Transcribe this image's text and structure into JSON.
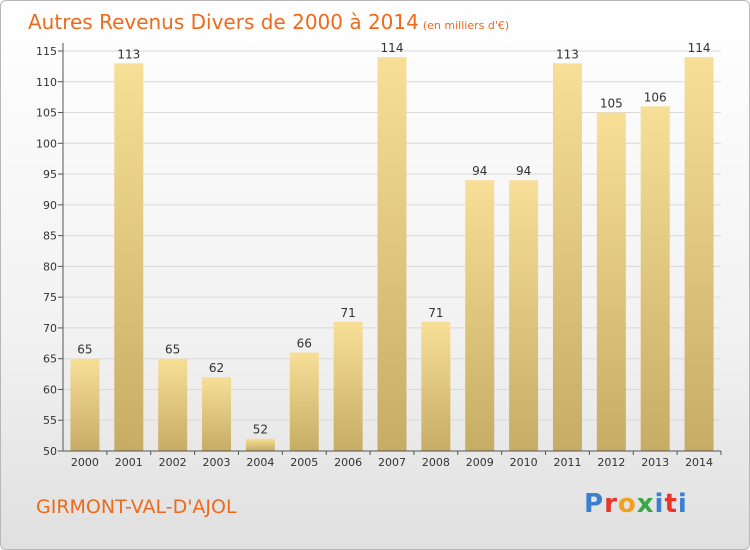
{
  "title": "Autres Revenus Divers de 2000 à 2014",
  "title_unit": "(en milliers d'€)",
  "location": "GIRMONT-VAL-D'AJOL",
  "logo": {
    "text": "Proxiti",
    "letters": [
      "P",
      "r",
      "o",
      "x",
      "i",
      "t",
      "i"
    ]
  },
  "colors": {
    "accent": "#ee6a1b",
    "bar_light": "#f8df98",
    "bar_dark": "#c6ac64"
  },
  "chart_data": {
    "type": "bar",
    "title": "Autres Revenus Divers de 2000 à 2014",
    "xlabel": "",
    "ylabel": "",
    "categories": [
      "2000",
      "2001",
      "2002",
      "2003",
      "2004",
      "2005",
      "2006",
      "2007",
      "2008",
      "2009",
      "2010",
      "2011",
      "2012",
      "2013",
      "2014"
    ],
    "values": [
      65,
      113,
      65,
      62,
      52,
      66,
      71,
      114,
      71,
      94,
      94,
      113,
      105,
      106,
      114
    ],
    "ylim": [
      50,
      115
    ],
    "yticks": [
      50,
      55,
      60,
      65,
      70,
      75,
      80,
      85,
      90,
      95,
      100,
      105,
      110,
      115
    ],
    "grid": true,
    "legend": "none"
  }
}
